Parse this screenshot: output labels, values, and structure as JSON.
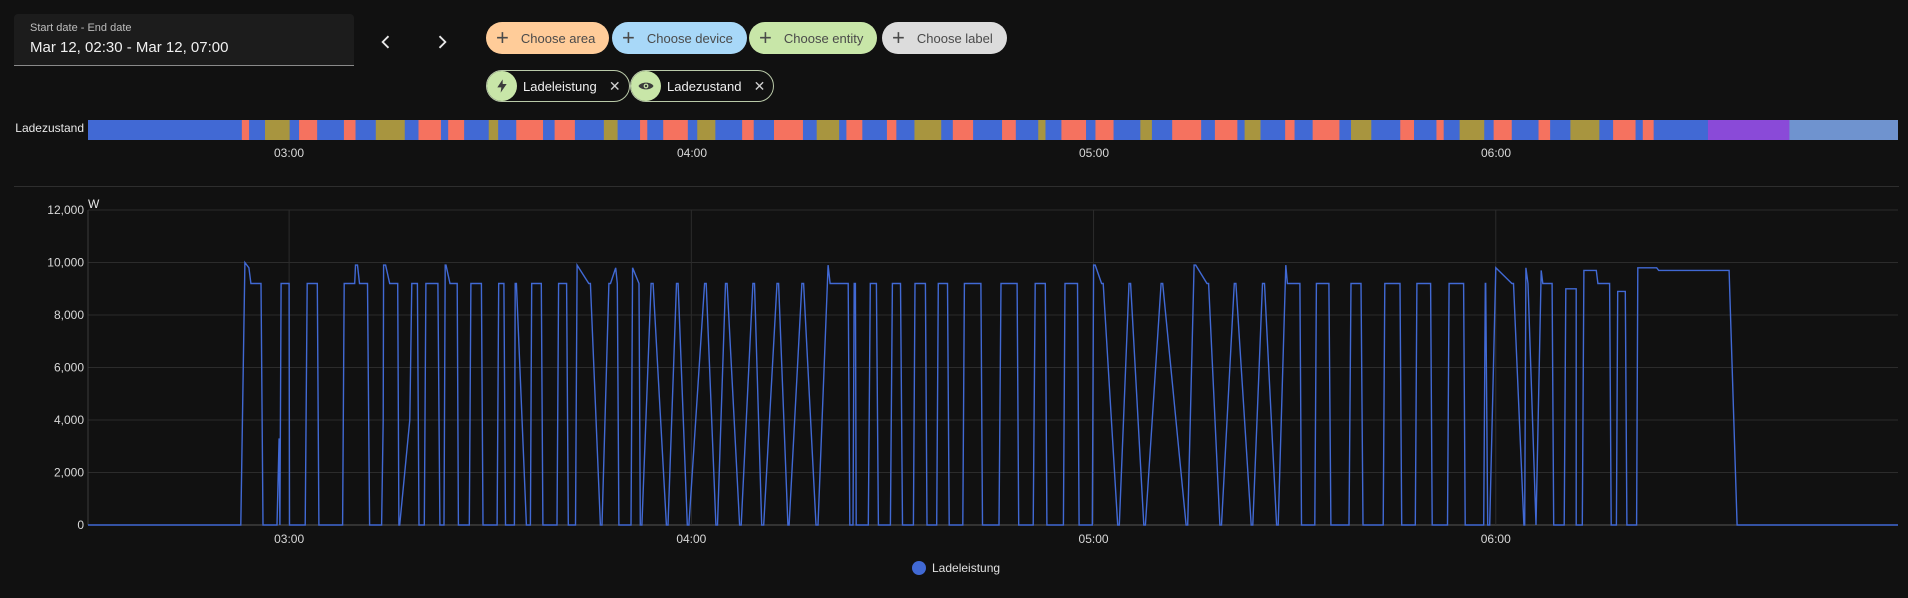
{
  "date_picker": {
    "label": "Start date - End date",
    "value": "Mar 12, 02:30 - Mar 12, 07:00"
  },
  "nav": {
    "prev_icon": "chevron-left-icon",
    "next_icon": "chevron-right-icon"
  },
  "targets": {
    "area": {
      "label": "Choose area",
      "color": "#ffcc99"
    },
    "device": {
      "label": "Choose device",
      "color": "#a8d8f8"
    },
    "entity": {
      "label": "Choose entity",
      "color": "#c8e6a8"
    },
    "label": {
      "label": "Choose label",
      "color": "#dcdcdc"
    }
  },
  "selected_entities": [
    {
      "name": "Ladeleistung",
      "icon": "lightning-bolt-icon"
    },
    {
      "name": "Ladezustand",
      "icon": "eye-icon"
    }
  ],
  "timeline": {
    "entity": "Ladezustand",
    "colors": {
      "state_a": "#4169d4",
      "state_b": "#f5725f",
      "state_c": "#8a4ad8",
      "state_d": "#6f93cf",
      "state_e": "#a8953f"
    },
    "ticks": [
      "03:00",
      "04:00",
      "05:00",
      "06:00"
    ]
  },
  "chart_data": {
    "type": "line",
    "title": "",
    "ylabel": "W",
    "xlabel": "",
    "ylim": [
      0,
      12000
    ],
    "yticks": [
      "12,000",
      "10,000",
      "8,000",
      "6,000",
      "4,000",
      "2,000",
      "0"
    ],
    "x_ticks": [
      "03:00",
      "04:00",
      "05:00",
      "06:00"
    ],
    "x_range_hours": [
      2.5,
      7.0
    ],
    "series": [
      {
        "name": "Ladeleistung",
        "color": "#4169d4",
        "x": [
          2.5,
          2.88,
          2.89,
          2.9,
          2.905,
          2.91,
          2.93,
          2.935,
          2.97,
          2.975,
          2.977,
          2.98,
          2.985,
          2.99,
          3.0,
          3.001,
          3.04,
          3.045,
          3.07,
          3.074,
          3.133,
          3.137,
          3.163,
          3.165,
          3.17,
          3.175,
          3.195,
          3.2,
          3.23,
          3.234,
          3.235,
          3.24,
          3.25,
          3.255,
          3.27,
          3.273,
          3.275,
          3.3,
          3.305,
          3.319,
          3.323,
          3.336,
          3.34,
          3.37,
          3.375,
          3.385,
          3.388,
          3.39,
          3.4,
          3.403,
          3.418,
          3.421,
          3.448,
          3.452,
          3.478,
          3.482,
          3.517,
          3.521,
          3.534,
          3.538,
          3.56,
          3.562,
          3.565,
          3.59,
          3.6,
          3.603,
          3.627,
          3.631,
          3.666,
          3.67,
          3.69,
          3.694,
          3.712,
          3.716,
          3.745,
          3.749,
          3.774,
          3.778,
          3.795,
          3.799,
          3.812,
          3.816,
          3.82,
          3.85,
          3.854,
          3.87,
          3.873,
          3.877,
          3.9,
          3.905,
          3.938,
          3.942,
          3.963,
          3.967,
          3.99,
          3.994,
          4.033,
          4.037,
          4.061,
          4.065,
          4.085,
          4.089,
          4.12,
          4.124,
          4.153,
          4.157,
          4.175,
          4.18,
          4.213,
          4.217,
          4.24,
          4.243,
          4.275,
          4.279,
          4.31,
          4.315,
          4.34,
          4.345,
          4.39,
          4.394,
          4.402,
          4.405,
          4.408,
          4.41,
          4.44,
          4.445,
          4.46,
          4.465,
          4.495,
          4.5,
          4.52,
          4.525,
          4.552,
          4.556,
          4.582,
          4.586,
          4.61,
          4.614,
          4.637,
          4.641,
          4.675,
          4.679,
          4.72,
          4.724,
          4.765,
          4.77,
          4.81,
          4.814,
          4.85,
          4.855,
          4.88,
          4.884,
          4.925,
          4.929,
          4.96,
          4.964,
          4.997,
          5.0,
          5.004,
          5.02,
          5.024,
          5.06,
          5.064,
          5.088,
          5.092,
          5.125,
          5.129,
          5.168,
          5.172,
          5.23,
          5.234,
          5.25,
          5.254,
          5.282,
          5.286,
          5.314,
          5.318,
          5.35,
          5.354,
          5.392,
          5.396,
          5.42,
          5.425,
          5.455,
          5.459,
          5.478,
          5.482,
          5.513,
          5.517,
          5.55,
          5.554,
          5.585,
          5.59,
          5.635,
          5.64,
          5.665,
          5.67,
          5.72,
          5.724,
          5.762,
          5.766,
          5.8,
          5.804,
          5.838,
          5.842,
          5.88,
          5.884,
          5.92,
          5.924,
          5.97,
          5.974,
          5.975,
          5.98,
          5.985,
          6.0,
          6.04,
          6.044,
          6.07,
          6.072,
          6.075,
          6.08,
          6.1,
          6.1,
          6.113,
          6.117,
          6.14,
          6.144,
          6.17,
          6.174,
          6.2,
          6.2,
          6.215,
          6.219,
          6.25,
          6.254,
          6.283,
          6.287,
          6.3,
          6.303,
          6.322,
          6.326,
          6.35,
          6.353,
          6.4,
          6.405,
          6.58,
          6.6,
          7.0
        ],
        "y": [
          0,
          0,
          10000,
          9800,
          9200,
          9200,
          9200,
          0,
          0,
          3300,
          0,
          9200,
          9200,
          9200,
          9200,
          0,
          0,
          9200,
          9200,
          0,
          0,
          9200,
          9200,
          9900,
          9900,
          9200,
          9200,
          0,
          0,
          4000,
          9900,
          9900,
          9200,
          9200,
          9200,
          0,
          0,
          4000,
          9200,
          9200,
          0,
          0,
          9200,
          9200,
          0,
          0,
          9900,
          9900,
          9200,
          9200,
          9200,
          0,
          0,
          9200,
          9200,
          0,
          0,
          9200,
          9200,
          0,
          0,
          9200,
          9200,
          0,
          0,
          9200,
          9200,
          0,
          0,
          9200,
          9200,
          0,
          0,
          9900,
          9200,
          9200,
          0,
          0,
          9200,
          9200,
          9800,
          9200,
          0,
          0,
          9800,
          9200,
          0,
          0,
          9200,
          9200,
          0,
          0,
          9200,
          9200,
          0,
          0,
          9200,
          9200,
          0,
          0,
          9200,
          9200,
          0,
          0,
          9200,
          9200,
          0,
          0,
          9200,
          9200,
          0,
          0,
          9200,
          9200,
          0,
          0,
          9900,
          9200,
          9200,
          0,
          0,
          9200,
          9200,
          0,
          0,
          9200,
          9200,
          0,
          0,
          9200,
          9200,
          0,
          0,
          9200,
          9200,
          0,
          0,
          9200,
          9200,
          0,
          0,
          9200,
          9200,
          0,
          0,
          9200,
          9200,
          0,
          0,
          9200,
          9200,
          0,
          0,
          9200,
          9200,
          0,
          0,
          9900,
          9900,
          9200,
          9200,
          0,
          0,
          9200,
          9200,
          0,
          0,
          9200,
          9200,
          0,
          0,
          9900,
          9900,
          9200,
          9200,
          0,
          0,
          9200,
          9200,
          0,
          0,
          9200,
          9200,
          0,
          0,
          9900,
          9200,
          9200,
          0,
          0,
          9200,
          9200,
          0,
          0,
          9200,
          9200,
          0,
          0,
          9200,
          9200,
          0,
          0,
          9200,
          9200,
          0,
          0,
          9200,
          9200,
          0,
          0,
          9200,
          9200,
          0,
          0,
          9800,
          9200,
          9200,
          0,
          0,
          9800,
          9200,
          0,
          0,
          9700,
          9200,
          9200,
          0,
          0,
          9000,
          9000,
          0,
          0,
          9700,
          9700,
          9200,
          9200,
          0,
          0,
          8900,
          8900,
          0,
          0,
          9800,
          9800,
          9700,
          9700,
          0,
          0
        ]
      }
    ]
  }
}
